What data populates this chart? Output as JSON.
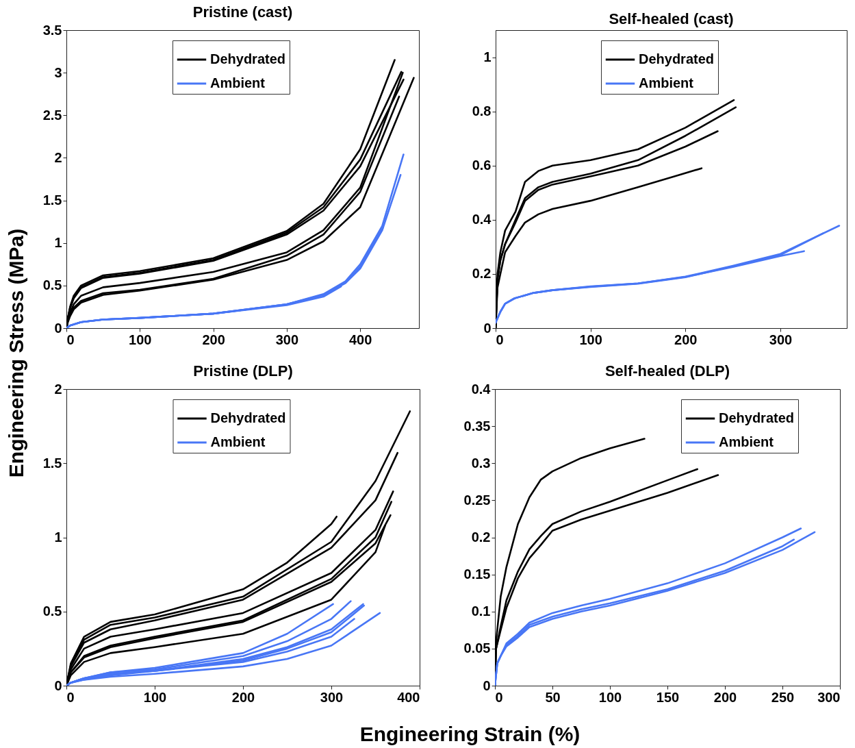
{
  "chart_data": [
    {
      "type": "line",
      "title": "Pristine (cast)",
      "ylabel": "Engineering Stress (MPa)",
      "xlim": [
        0,
        480
      ],
      "xticks": [
        0,
        100,
        200,
        300,
        400
      ],
      "ylim": [
        0,
        3.5
      ],
      "yticks": [
        0,
        0.5,
        1,
        1.5,
        2,
        2.5,
        3,
        3.5
      ],
      "legend": "top",
      "series": [
        {
          "name": "Dehydrated",
          "color": "#000000",
          "x": [
            0,
            2,
            5,
            10,
            20,
            50,
            100,
            200,
            300,
            350,
            400,
            447
          ],
          "values": [
            0,
            0.12,
            0.25,
            0.38,
            0.5,
            0.62,
            0.67,
            0.82,
            1.14,
            1.46,
            2.1,
            3.15
          ]
        },
        {
          "color": "#000000",
          "x": [
            0,
            2,
            5,
            10,
            20,
            50,
            100,
            200,
            300,
            350,
            400,
            456
          ],
          "values": [
            0,
            0.11,
            0.24,
            0.36,
            0.48,
            0.6,
            0.65,
            0.8,
            1.12,
            1.42,
            1.98,
            3.01
          ]
        },
        {
          "color": "#000000",
          "x": [
            0,
            2,
            5,
            10,
            20,
            50,
            100,
            200,
            300,
            350,
            400,
            459
          ],
          "values": [
            0,
            0.11,
            0.23,
            0.35,
            0.47,
            0.59,
            0.64,
            0.79,
            1.1,
            1.38,
            1.9,
            2.92
          ]
        },
        {
          "color": "#000000",
          "x": [
            0,
            2,
            5,
            10,
            20,
            50,
            100,
            200,
            300,
            350,
            400,
            458
          ],
          "values": [
            0,
            0.09,
            0.18,
            0.28,
            0.38,
            0.48,
            0.53,
            0.66,
            0.89,
            1.15,
            1.65,
            3.0
          ]
        },
        {
          "color": "#000000",
          "x": [
            0,
            2,
            5,
            10,
            20,
            50,
            100,
            200,
            300,
            350,
            400,
            453
          ],
          "values": [
            0,
            0.08,
            0.15,
            0.24,
            0.32,
            0.41,
            0.45,
            0.58,
            0.85,
            1.1,
            1.6,
            2.72
          ]
        },
        {
          "color": "#000000",
          "x": [
            0,
            2,
            5,
            10,
            20,
            50,
            100,
            200,
            300,
            350,
            400,
            473
          ],
          "values": [
            0,
            0.07,
            0.14,
            0.22,
            0.3,
            0.39,
            0.44,
            0.57,
            0.8,
            1.02,
            1.42,
            2.94
          ]
        },
        {
          "name": "Ambient",
          "color": "#4876f5",
          "x": [
            0,
            5,
            20,
            50,
            100,
            200,
            300,
            350,
            380,
            400,
            430,
            459
          ],
          "values": [
            0,
            0.03,
            0.07,
            0.1,
            0.12,
            0.17,
            0.28,
            0.4,
            0.55,
            0.75,
            1.2,
            2.04
          ]
        },
        {
          "color": "#4876f5",
          "x": [
            0,
            5,
            20,
            50,
            100,
            200,
            300,
            350,
            380,
            400,
            430,
            455
          ],
          "values": [
            0,
            0.03,
            0.07,
            0.1,
            0.12,
            0.17,
            0.28,
            0.39,
            0.53,
            0.7,
            1.15,
            1.8
          ]
        },
        {
          "color": "#4876f5",
          "x": [
            0,
            5,
            20,
            50,
            100,
            200,
            300,
            350,
            380,
            400,
            431
          ],
          "values": [
            0,
            0.03,
            0.07,
            0.1,
            0.12,
            0.17,
            0.28,
            0.39,
            0.53,
            0.72,
            1.18
          ]
        },
        {
          "color": "#4876f5",
          "x": [
            0,
            5,
            20,
            50,
            100,
            200,
            300,
            350,
            374
          ],
          "values": [
            0,
            0.03,
            0.07,
            0.1,
            0.12,
            0.17,
            0.27,
            0.37,
            0.49
          ]
        }
      ]
    },
    {
      "type": "line",
      "title": "Self-healed (cast)",
      "xlim": [
        0,
        370
      ],
      "xticks": [
        0,
        100,
        200,
        300
      ],
      "ylim": [
        0,
        1.1
      ],
      "yticks": [
        0,
        0.2,
        0.4,
        0.6,
        0.8,
        1
      ],
      "legend": "top",
      "series": [
        {
          "name": "Dehydrated",
          "color": "#000000",
          "x": [
            0,
            2,
            5,
            10,
            21,
            31,
            45,
            60,
            100,
            150,
            200,
            251
          ],
          "values": [
            0,
            0.2,
            0.28,
            0.36,
            0.43,
            0.54,
            0.58,
            0.6,
            0.62,
            0.66,
            0.74,
            0.842
          ]
        },
        {
          "color": "#000000",
          "x": [
            0,
            2,
            5,
            10,
            21,
            31,
            45,
            60,
            100,
            150,
            200,
            253
          ],
          "values": [
            0,
            0.18,
            0.25,
            0.31,
            0.4,
            0.48,
            0.52,
            0.54,
            0.57,
            0.62,
            0.71,
            0.815
          ]
        },
        {
          "color": "#000000",
          "x": [
            0,
            2,
            5,
            10,
            21,
            31,
            45,
            60,
            100,
            150,
            200,
            234
          ],
          "values": [
            0,
            0.18,
            0.25,
            0.31,
            0.39,
            0.47,
            0.51,
            0.53,
            0.56,
            0.6,
            0.67,
            0.727
          ]
        },
        {
          "color": "#000000",
          "x": [
            0,
            2,
            5,
            10,
            21,
            31,
            45,
            60,
            100,
            150,
            217
          ],
          "values": [
            0,
            0.15,
            0.2,
            0.28,
            0.34,
            0.39,
            0.42,
            0.44,
            0.47,
            0.52,
            0.59
          ]
        },
        {
          "name": "Ambient",
          "color": "#4876f5",
          "x": [
            0,
            5,
            10,
            20,
            40,
            60,
            100,
            150,
            200,
            250,
            300,
            362
          ],
          "values": [
            0.02,
            0.06,
            0.09,
            0.11,
            0.13,
            0.14,
            0.154,
            0.165,
            0.19,
            0.23,
            0.274,
            0.378
          ]
        },
        {
          "color": "#4876f5",
          "x": [
            0,
            5,
            10,
            20,
            40,
            60,
            100,
            150,
            200,
            250,
            300,
            345
          ],
          "values": [
            0.02,
            0.06,
            0.09,
            0.11,
            0.13,
            0.14,
            0.152,
            0.164,
            0.188,
            0.228,
            0.27,
            0.35
          ]
        },
        {
          "color": "#4876f5",
          "x": [
            0,
            5,
            10,
            20,
            40,
            60,
            100,
            150,
            200,
            250,
            300,
            325
          ],
          "values": [
            0.02,
            0.06,
            0.09,
            0.11,
            0.13,
            0.14,
            0.153,
            0.165,
            0.189,
            0.226,
            0.266,
            0.284
          ]
        }
      ]
    },
    {
      "type": "line",
      "title": "Pristine (DLP)",
      "xlabel": "Engineering Strain (%)",
      "xlim": [
        0,
        400
      ],
      "xticks": [
        0,
        100,
        200,
        300,
        400
      ],
      "ylim": [
        0,
        2
      ],
      "yticks": [
        0,
        0.5,
        1,
        1.5,
        2
      ],
      "legend": "top",
      "series": [
        {
          "name": "Dehydrated",
          "color": "#000000",
          "x": [
            0,
            5,
            20,
            50,
            100,
            200,
            250,
            300,
            306
          ],
          "values": [
            0,
            0.15,
            0.33,
            0.43,
            0.48,
            0.65,
            0.83,
            1.09,
            1.14
          ]
        },
        {
          "color": "#000000",
          "x": [
            0,
            5,
            20,
            50,
            100,
            200,
            300,
            350,
            389
          ],
          "values": [
            0,
            0.14,
            0.31,
            0.41,
            0.46,
            0.6,
            0.97,
            1.38,
            1.85
          ]
        },
        {
          "color": "#000000",
          "x": [
            0,
            5,
            20,
            50,
            100,
            200,
            300,
            350,
            375
          ],
          "values": [
            0,
            0.13,
            0.29,
            0.38,
            0.44,
            0.58,
            0.93,
            1.25,
            1.57
          ]
        },
        {
          "color": "#000000",
          "x": [
            0,
            5,
            20,
            50,
            100,
            200,
            300,
            350,
            370
          ],
          "values": [
            0,
            0.11,
            0.25,
            0.33,
            0.38,
            0.49,
            0.76,
            1.05,
            1.31
          ]
        },
        {
          "color": "#000000",
          "x": [
            0,
            5,
            20,
            50,
            100,
            200,
            300,
            350,
            368
          ],
          "values": [
            0,
            0.09,
            0.2,
            0.27,
            0.33,
            0.44,
            0.72,
            1.0,
            1.24
          ]
        },
        {
          "color": "#000000",
          "x": [
            0,
            5,
            20,
            50,
            100,
            200,
            300,
            350,
            367
          ],
          "values": [
            0,
            0.09,
            0.19,
            0.26,
            0.32,
            0.43,
            0.7,
            0.96,
            1.15
          ]
        },
        {
          "color": "#000000",
          "x": [
            0,
            5,
            20,
            50,
            100,
            200,
            300,
            350,
            361
          ],
          "values": [
            0,
            0.07,
            0.16,
            0.22,
            0.26,
            0.35,
            0.58,
            0.9,
            1.08
          ]
        },
        {
          "name": "Ambient",
          "color": "#4876f5",
          "x": [
            0,
            5,
            20,
            50,
            100,
            200,
            250,
            302
          ],
          "values": [
            0,
            0.02,
            0.05,
            0.09,
            0.12,
            0.22,
            0.35,
            0.55
          ]
        },
        {
          "color": "#4876f5",
          "x": [
            0,
            5,
            20,
            50,
            100,
            200,
            250,
            300,
            322
          ],
          "values": [
            0,
            0.02,
            0.05,
            0.09,
            0.11,
            0.2,
            0.3,
            0.45,
            0.57
          ]
        },
        {
          "color": "#4876f5",
          "x": [
            0,
            5,
            20,
            50,
            100,
            200,
            250,
            300,
            336
          ],
          "values": [
            0,
            0.02,
            0.05,
            0.08,
            0.1,
            0.18,
            0.26,
            0.38,
            0.55
          ]
        },
        {
          "color": "#4876f5",
          "x": [
            0,
            5,
            20,
            50,
            100,
            200,
            250,
            300,
            337
          ],
          "values": [
            0,
            0.02,
            0.05,
            0.08,
            0.1,
            0.17,
            0.25,
            0.36,
            0.54
          ]
        },
        {
          "color": "#4876f5",
          "x": [
            0,
            5,
            20,
            50,
            100,
            200,
            250,
            300,
            326
          ],
          "values": [
            0,
            0.02,
            0.04,
            0.07,
            0.1,
            0.16,
            0.23,
            0.33,
            0.45
          ]
        },
        {
          "color": "#4876f5",
          "x": [
            0,
            5,
            20,
            50,
            100,
            200,
            250,
            300,
            355
          ],
          "values": [
            0,
            0.02,
            0.04,
            0.06,
            0.08,
            0.13,
            0.18,
            0.27,
            0.49
          ]
        }
      ]
    },
    {
      "type": "line",
      "title": "Self-healed (DLP)",
      "xlim": [
        0,
        300
      ],
      "xticks": [
        0,
        50,
        100,
        150,
        200,
        250,
        300
      ],
      "ylim": [
        0,
        0.4
      ],
      "yticks": [
        0,
        0.05,
        0.1,
        0.15,
        0.2,
        0.25,
        0.3,
        0.35,
        0.4
      ],
      "legend": "top right",
      "series": [
        {
          "name": "Dehydrated",
          "color": "#000000",
          "x": [
            0,
            1,
            5,
            10,
            20,
            30,
            40,
            50,
            75,
            100,
            130
          ],
          "values": [
            0,
            0.06,
            0.12,
            0.16,
            0.218,
            0.254,
            0.278,
            0.289,
            0.307,
            0.32,
            0.333
          ]
        },
        {
          "color": "#000000",
          "x": [
            0,
            1,
            5,
            10,
            20,
            30,
            40,
            50,
            75,
            100,
            150,
            176
          ],
          "values": [
            0,
            0.05,
            0.08,
            0.115,
            0.154,
            0.184,
            0.202,
            0.218,
            0.235,
            0.248,
            0.277,
            0.292
          ]
        },
        {
          "color": "#000000",
          "x": [
            0,
            1,
            5,
            10,
            20,
            30,
            40,
            50,
            75,
            100,
            150,
            194
          ],
          "values": [
            0,
            0.05,
            0.075,
            0.105,
            0.145,
            0.172,
            0.19,
            0.209,
            0.224,
            0.236,
            0.26,
            0.284
          ]
        },
        {
          "name": "Ambient",
          "color": "#4876f5",
          "x": [
            0,
            2,
            5,
            10,
            20,
            30,
            50,
            75,
            100,
            150,
            200,
            250,
            266
          ],
          "values": [
            0,
            0.03,
            0.04,
            0.057,
            0.07,
            0.085,
            0.098,
            0.108,
            0.117,
            0.138,
            0.165,
            0.2,
            0.212
          ]
        },
        {
          "color": "#4876f5",
          "x": [
            0,
            2,
            5,
            10,
            20,
            30,
            50,
            75,
            100,
            150,
            200,
            250,
            260
          ],
          "values": [
            0,
            0.03,
            0.04,
            0.055,
            0.067,
            0.082,
            0.093,
            0.103,
            0.111,
            0.13,
            0.155,
            0.188,
            0.197
          ]
        },
        {
          "color": "#4876f5",
          "x": [
            0,
            2,
            5,
            10,
            20,
            30,
            50,
            75,
            100,
            150,
            200,
            250,
            278
          ],
          "values": [
            0,
            0.03,
            0.04,
            0.053,
            0.065,
            0.079,
            0.09,
            0.1,
            0.108,
            0.128,
            0.152,
            0.183,
            0.207
          ]
        }
      ]
    }
  ]
}
